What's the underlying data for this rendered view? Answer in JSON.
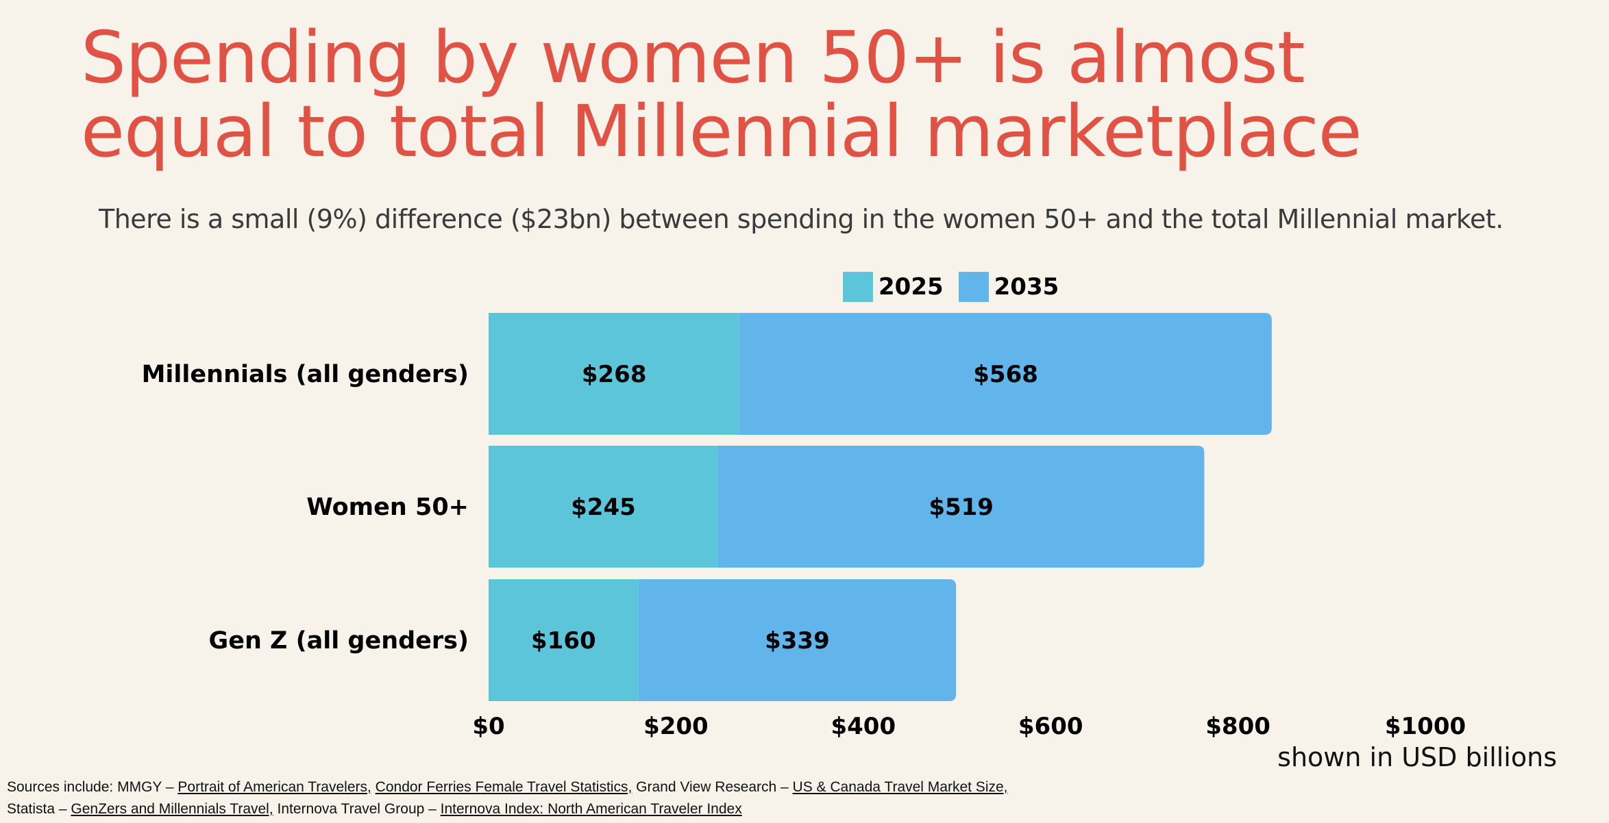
{
  "title_lines": [
    "Spending by women 50+ is almost",
    "equal to total Millennial marketplace"
  ],
  "subtitle": "There is a small (9%) difference ($23bn) between spending in the women 50+ and the total Millennial market.",
  "colors": {
    "background": "#f7f2ea",
    "title": "#e05244",
    "series_2025": "#5dc5d9",
    "series_2035": "#61b5ea"
  },
  "chart_data": {
    "type": "bar",
    "orientation": "horizontal",
    "stacked": true,
    "categories": [
      "Millennials (all genders)",
      "Women 50+",
      "Gen Z (all genders)"
    ],
    "series": [
      {
        "name": "2025",
        "values": [
          268,
          245,
          160
        ],
        "labels": [
          "$268",
          "$245",
          "$160"
        ]
      },
      {
        "name": "2035",
        "values": [
          568,
          519,
          339
        ],
        "labels": [
          "$568",
          "$519",
          "$339"
        ]
      }
    ],
    "xlim": [
      0,
      1000
    ],
    "xticks": [
      0,
      200,
      400,
      600,
      800,
      1000
    ],
    "xtick_labels": [
      "$0",
      "$200",
      "$400",
      "$600",
      "$800",
      "$1000"
    ],
    "xlabel": "shown in USD billions",
    "legend_position": "top",
    "grid": false
  },
  "sources": {
    "line1": [
      {
        "text": "Sources include: MMGY – ",
        "link": false
      },
      {
        "text": "Portrait of American Travelers,",
        "link": true
      },
      {
        "text": " ",
        "link": false
      },
      {
        "text": "Condor Ferries Female Travel Statistics,",
        "link": true
      },
      {
        "text": " Grand View Research – ",
        "link": false
      },
      {
        "text": "US & Canada Travel Market Size,",
        "link": true
      }
    ],
    "line2": [
      {
        "text": "Statista – ",
        "link": false
      },
      {
        "text": "GenZers and Millennials Travel,",
        "link": true
      },
      {
        "text": " Internova Travel Group – ",
        "link": false
      },
      {
        "text": "Internova Index: North American Traveler Index",
        "link": true
      }
    ]
  }
}
